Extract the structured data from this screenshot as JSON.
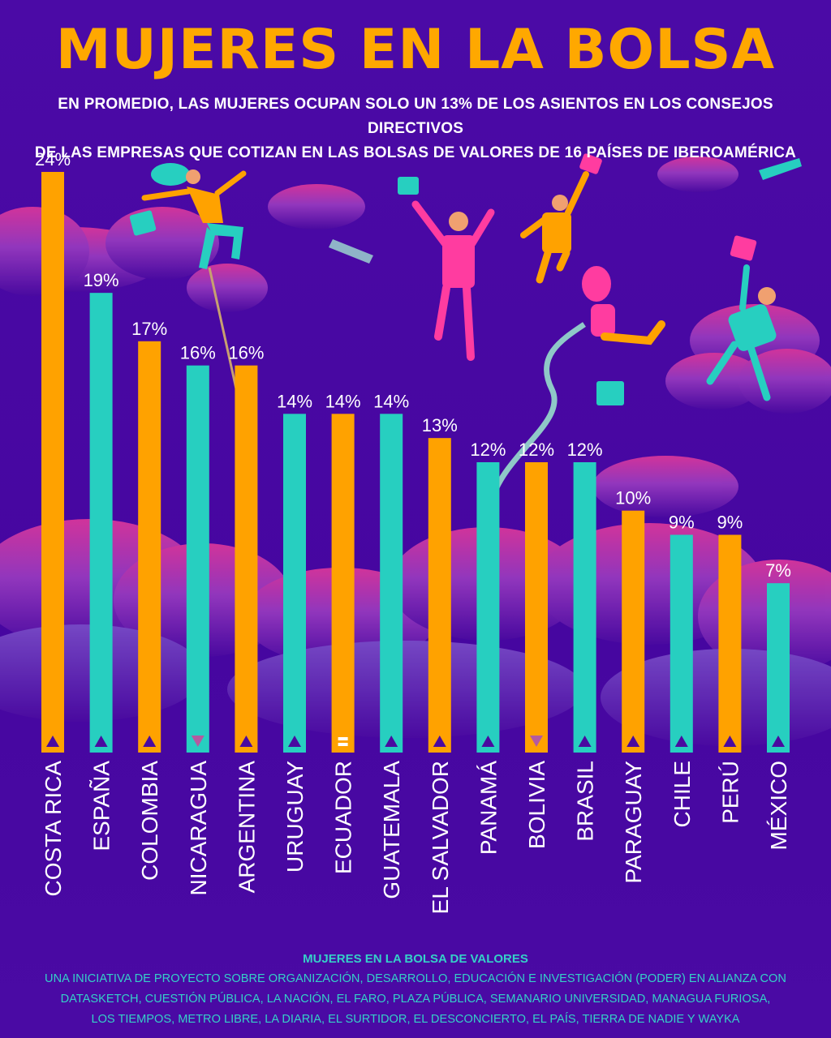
{
  "title": "MUJERES EN LA BOLSA",
  "subtitle": {
    "line1": "EN PROMEDIO, LAS MUJERES OCUPAN SOLO UN 13% DE LOS ASIENTOS EN LOS CONSEJOS DIRECTIVOS",
    "line2": "DE LAS EMPRESAS QUE COTIZAN EN LAS BOLSAS DE VALORES DE 16 PAÍSES DE IBEROAMÉRICA"
  },
  "chart_data": {
    "type": "bar",
    "categories": [
      "COSTA RICA",
      "ESPAÑA",
      "COLOMBIA",
      "NICARAGUA",
      "ARGENTINA",
      "URUGUAY",
      "ECUADOR",
      "GUATEMALA",
      "EL SALVADOR",
      "PANAMÁ",
      "BOLIVIA",
      "BRASIL",
      "PARAGUAY",
      "CHILE",
      "PERÚ",
      "MÉXICO"
    ],
    "values": [
      24,
      19,
      17,
      16,
      16,
      14,
      14,
      14,
      13,
      12,
      12,
      12,
      10,
      9,
      9,
      7
    ],
    "labels": [
      "24%",
      "19%",
      "17%",
      "16%",
      "16%",
      "14%",
      "14%",
      "14%",
      "13%",
      "12%",
      "12%",
      "12%",
      "10%",
      "9%",
      "9%",
      "7%"
    ],
    "bar_colors": [
      "#ffa200",
      "#27cfc0",
      "#ffa200",
      "#27cfc0",
      "#ffa200",
      "#27cfc0",
      "#ffa200",
      "#27cfc0",
      "#ffa200",
      "#27cfc0",
      "#ffa200",
      "#27cfc0",
      "#ffa200",
      "#27cfc0",
      "#ffa200",
      "#27cfc0"
    ],
    "markers": [
      "up",
      "up",
      "up",
      "down",
      "up",
      "up",
      "equal",
      "up",
      "up",
      "up",
      "down",
      "up",
      "up",
      "up",
      "up",
      "up"
    ],
    "ylim": [
      0,
      24
    ],
    "grid": false,
    "legend": "none"
  },
  "colors": {
    "background": "#4a0aa0",
    "title": "#ffa800",
    "orange_bar": "#ffa200",
    "teal_bar": "#27cfc0",
    "marker_up": "#4a0aa0",
    "marker_down": "#b45aa0",
    "footer": "#35d0c8"
  },
  "footer": {
    "title": "MUJERES EN LA BOLSA DE VALORES",
    "line1": "UNA INICIATIVA DE PROYECTO SOBRE ORGANIZACIÓN, DESARROLLO, EDUCACIÓN E INVESTIGACIÓN (PODER) EN ALIANZA CON",
    "line2": "DATASKETCH, CUESTIÓN PÚBLICA, LA NACIÓN, EL FARO, PLAZA PÚBLICA, SEMANARIO UNIVERSIDAD, MANAGUA FURIOSA,",
    "line3": "LOS TIEMPOS, METRO LIBRE, LA DIARIA, EL SURTIDOR, EL DESCONCIERTO, EL PAÍS, TIERRA DE NADIE Y WAYKA"
  }
}
